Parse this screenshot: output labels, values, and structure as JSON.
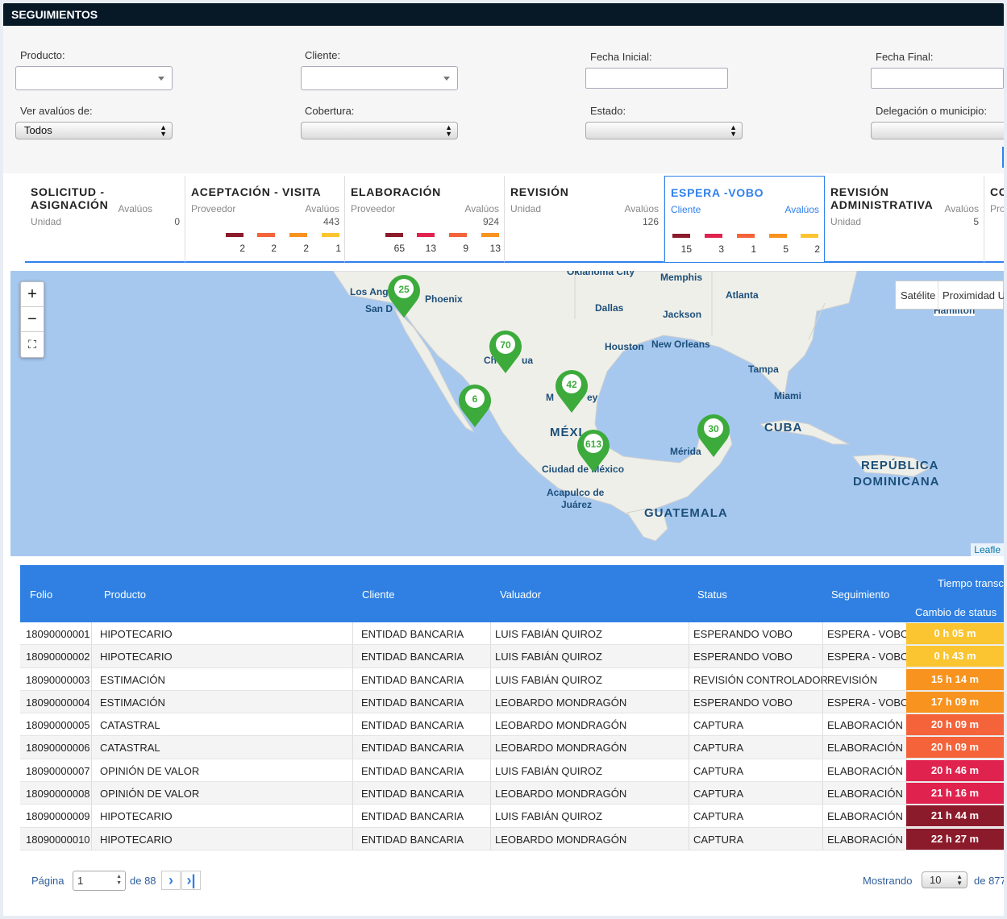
{
  "title": "SEGUIMIENTOS",
  "filters": {
    "producto_label": "Producto:",
    "cliente_label": "Cliente:",
    "fecha_inicial_label": "Fecha Inicial:",
    "fecha_final_label": "Fecha Final:",
    "ver_label": "Ver avalúos de:",
    "ver_value": "Todos",
    "cobertura_label": "Cobertura:",
    "estado_label": "Estado:",
    "delegacion_label": "Delegación o municipio:"
  },
  "stages": [
    {
      "title1": "SOLICITUD -",
      "title2": "ASIGNACIÓN",
      "sub": "Unidad",
      "avaluos_label": "Avalúos",
      "count": "0",
      "bars": []
    },
    {
      "title1": "ACEPTACIÓN - VISITA",
      "title2": "",
      "sub": "Proveedor",
      "avaluos_label": "Avalúos",
      "count": "443",
      "bars": [
        "2",
        "2",
        "2",
        "1"
      ]
    },
    {
      "title1": "ELABORACIÓN",
      "title2": "",
      "sub": "Proveedor",
      "avaluos_label": "Avalúos",
      "count": "924",
      "bars": [
        "65",
        "13",
        "9",
        "13"
      ]
    },
    {
      "title1": "REVISIÓN",
      "title2": "",
      "sub": "Unidad",
      "avaluos_label": "Avalúos",
      "count": "126",
      "bars": []
    },
    {
      "title1": "ESPERA -VOBO",
      "title2": "",
      "sub": "Cliente",
      "avaluos_label": "Avalúos",
      "count": "",
      "bars": [
        "15",
        "3",
        "1",
        "5",
        "2"
      ]
    },
    {
      "title1": "REVISIÓN",
      "title2": "ADMINISTRATIVA",
      "sub": "Unidad",
      "avaluos_label": "Avalúos",
      "count": "5",
      "bars": []
    },
    {
      "title1": "CO",
      "title2": "",
      "sub": "Pro",
      "avaluos_label": "",
      "count": "",
      "bars": []
    }
  ],
  "bar_colors": [
    "#8b1a2a",
    "#e0224e",
    "#f4633a",
    "#f7931e",
    "#fbc531"
  ],
  "map": {
    "zoom_in": "+",
    "zoom_out": "−",
    "layers": [
      "Satélite",
      "Proximidad U"
    ],
    "attribution": "Leafle",
    "cities": [
      {
        "name": "Oklahoma City"
      },
      {
        "name": "Memphis"
      },
      {
        "name": "Los Ang"
      },
      {
        "name": "San D"
      },
      {
        "name": "Phoenix"
      },
      {
        "name": "Atlanta"
      },
      {
        "name": "Dallas"
      },
      {
        "name": "Jackson"
      },
      {
        "name": "Hamilton"
      },
      {
        "name": "Houston"
      },
      {
        "name": "New Orleans"
      },
      {
        "name": "Tampa"
      },
      {
        "name": "Ch"
      },
      {
        "name": "ua"
      },
      {
        "name": "Miami"
      },
      {
        "name": "M"
      },
      {
        "name": "ey"
      },
      {
        "name": "MÉXI"
      },
      {
        "name": "CUBA"
      },
      {
        "name": "Mérida"
      },
      {
        "name": "Ciudad de México"
      },
      {
        "name": "REPÚBLICA"
      },
      {
        "name": "DOMINICANA"
      },
      {
        "name": "Acapulco de"
      },
      {
        "name": "Juárez"
      },
      {
        "name": "GUATEMALA"
      }
    ],
    "markers": [
      {
        "label": "25"
      },
      {
        "label": "70"
      },
      {
        "label": "42"
      },
      {
        "label": "6"
      },
      {
        "label": "613"
      },
      {
        "label": "30"
      }
    ]
  },
  "table": {
    "headers": {
      "folio": "Folio",
      "producto": "Producto",
      "cliente": "Cliente",
      "valuador": "Valuador",
      "status": "Status",
      "seguimiento": "Seguimiento",
      "tiempo": "Tiempo transc",
      "cambio": "Cambio de status"
    },
    "rows": [
      {
        "folio": "18090000001",
        "producto": "HIPOTECARIO",
        "cliente": "ENTIDAD BANCARIA",
        "valuador": "LUIS FABIÁN QUIROZ",
        "status": "ESPERANDO VOBO",
        "seguimiento": "ESPERA - VOBO",
        "tiempo": "0 h 05 m",
        "color": "#fbc531"
      },
      {
        "folio": "18090000002",
        "producto": "HIPOTECARIO",
        "cliente": "ENTIDAD BANCARIA",
        "valuador": "LUIS FABIÁN QUIROZ",
        "status": "ESPERANDO VOBO",
        "seguimiento": "ESPERA - VOBO",
        "tiempo": "0 h 43 m",
        "color": "#fbc531"
      },
      {
        "folio": "18090000003",
        "producto": "ESTIMACIÓN",
        "cliente": "ENTIDAD BANCARIA",
        "valuador": "LUIS FABIÁN QUIROZ",
        "status": "REVISIÓN CONTROLADOR",
        "seguimiento": "REVISIÓN",
        "tiempo": "15 h 14 m",
        "color": "#f7931e"
      },
      {
        "folio": "18090000004",
        "producto": "ESTIMACIÓN",
        "cliente": "ENTIDAD BANCARIA",
        "valuador": "LEOBARDO MONDRAGÓN",
        "status": "ESPERANDO VOBO",
        "seguimiento": "ESPERA - VOBO",
        "tiempo": "17 h 09 m",
        "color": "#f7931e"
      },
      {
        "folio": "18090000005",
        "producto": "CATASTRAL",
        "cliente": "ENTIDAD BANCARIA",
        "valuador": "LEOBARDO MONDRAGÓN",
        "status": "CAPTURA",
        "seguimiento": "ELABORACIÓN",
        "tiempo": "20 h 09 m",
        "color": "#f4633a"
      },
      {
        "folio": "18090000006",
        "producto": "CATASTRAL",
        "cliente": "ENTIDAD BANCARIA",
        "valuador": "LEOBARDO MONDRAGÓN",
        "status": "CAPTURA",
        "seguimiento": "ELABORACIÓN",
        "tiempo": "20 h 09 m",
        "color": "#f4633a"
      },
      {
        "folio": "18090000007",
        "producto": "OPINIÓN DE VALOR",
        "cliente": "ENTIDAD BANCARIA",
        "valuador": "LUIS FABIÁN QUIROZ",
        "status": "CAPTURA",
        "seguimiento": "ELABORACIÓN",
        "tiempo": "20 h 46 m",
        "color": "#e0224e"
      },
      {
        "folio": "18090000008",
        "producto": "OPINIÓN DE VALOR",
        "cliente": "ENTIDAD BANCARIA",
        "valuador": "LEOBARDO MONDRAGÓN",
        "status": "CAPTURA",
        "seguimiento": "ELABORACIÓN",
        "tiempo": "21 h 16 m",
        "color": "#e0224e"
      },
      {
        "folio": "18090000009",
        "producto": "HIPOTECARIO",
        "cliente": "ENTIDAD BANCARIA",
        "valuador": "LUIS FABIÁN QUIROZ",
        "status": "CAPTURA",
        "seguimiento": "ELABORACIÓN",
        "tiempo": "21 h 44 m",
        "color": "#8b1a2a"
      },
      {
        "folio": "18090000010",
        "producto": "HIPOTECARIO",
        "cliente": "ENTIDAD BANCARIA",
        "valuador": "LEOBARDO MONDRAGÓN",
        "status": "CAPTURA",
        "seguimiento": "ELABORACIÓN",
        "tiempo": "22 h 27 m",
        "color": "#8b1a2a"
      }
    ]
  },
  "pager": {
    "pagina_label": "Página",
    "page": "1",
    "de_label": "de 88",
    "mostrando_label": "Mostrando",
    "per_page": "10",
    "total_label": "de 877"
  }
}
